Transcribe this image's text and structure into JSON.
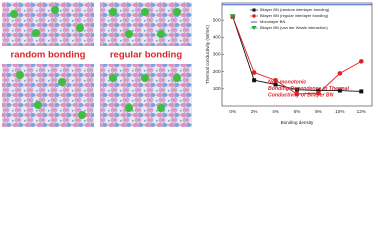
{
  "labels": {
    "left": "random bonding",
    "right": "regular bonding"
  },
  "chart_data": {
    "type": "line",
    "y_label": "Thermal conductivity (W/mK)",
    "x_label": "Bonding density",
    "categories": [
      "0%",
      "2%",
      "4%",
      "6%",
      "8%",
      "10%",
      "12%"
    ],
    "ylim": [
      0,
      600
    ],
    "yticks": [
      100,
      200,
      300,
      400,
      500
    ],
    "series": [
      {
        "name": "Bilayer BN (random interlayer bonding)",
        "color": "#111111",
        "marker": "square",
        "values": [
          520,
          150,
          125,
          95,
          90,
          90,
          85
        ]
      },
      {
        "name": "Bilayer BN (regular interlayer bonding)",
        "color": "#e02020",
        "marker": "circle",
        "values": [
          520,
          195,
          150,
          70,
          75,
          190,
          260
        ]
      },
      {
        "name": "Monolayer BN",
        "color": "#3a5fcd",
        "marker": "hline",
        "value": 590
      },
      {
        "name": "Bilayer BN (van der Waals interaction)",
        "color": "#2a9d3a",
        "marker": "triangle",
        "values": [
          520,
          null,
          null,
          null,
          null,
          null,
          null
        ]
      }
    ],
    "annotation": [
      "Non-monotonic",
      "Bonding Dependence in Thermal",
      "Conductivity of Bilayer BN"
    ]
  }
}
